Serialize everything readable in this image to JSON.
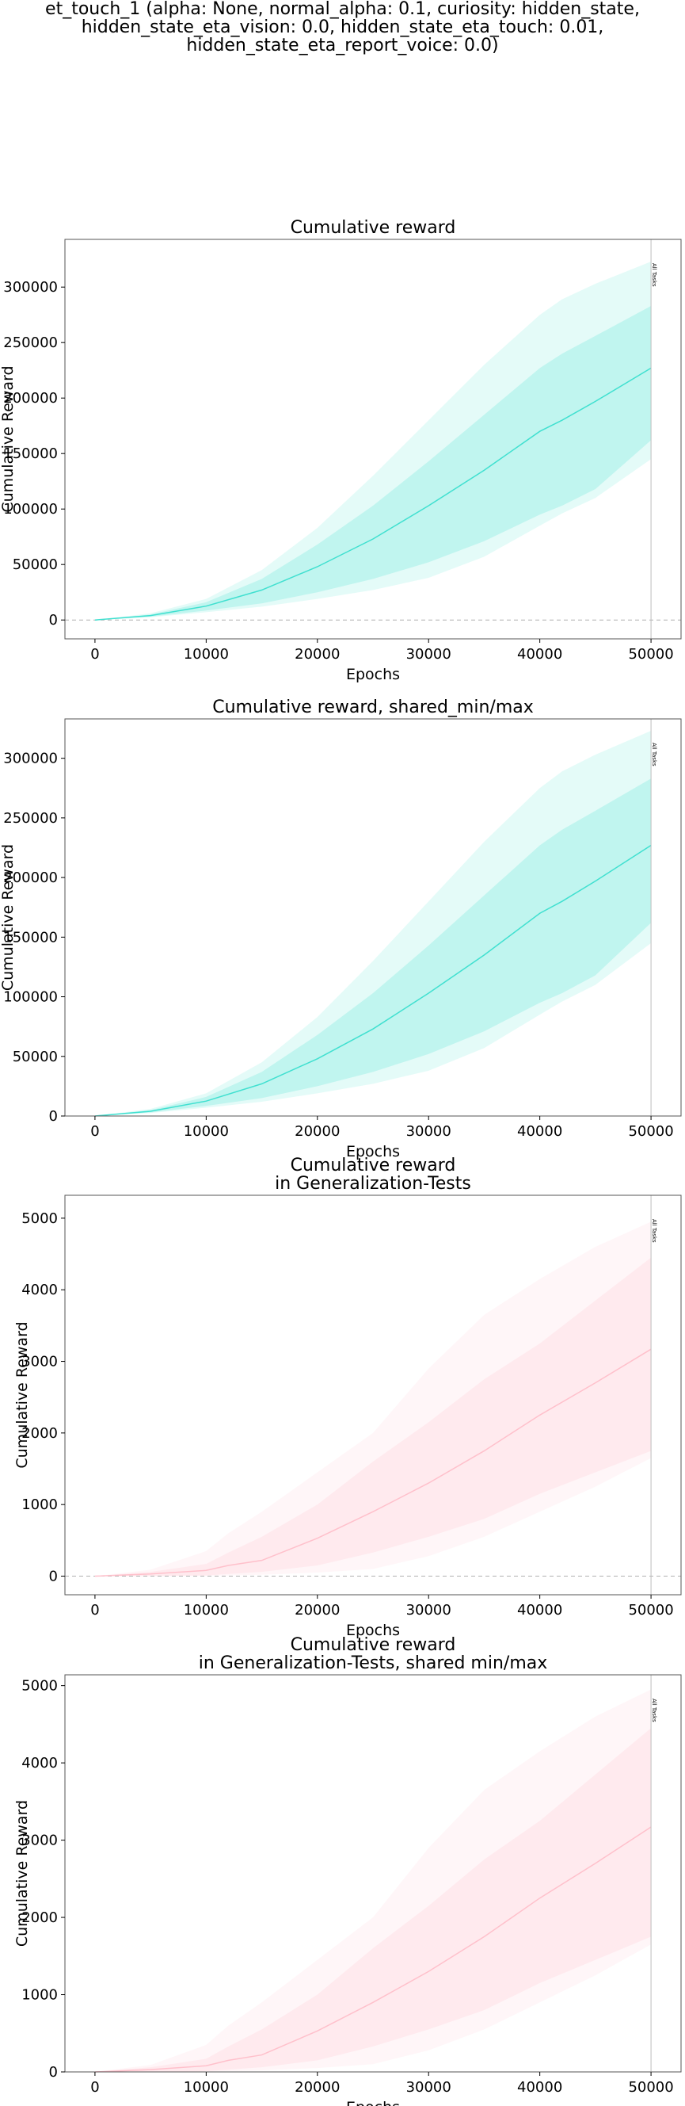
{
  "figure": {
    "suptitle_lines": [
      "et_touch_1 (alpha: None, normal_alpha: 0.1, curiosity: hidden_state,",
      "hidden_state_eta_vision: 0.0, hidden_state_eta_touch: 0.01,",
      "hidden_state_eta_report_voice: 0.0)"
    ]
  },
  "chart_data": [
    {
      "type": "area",
      "title_lines": [
        "Cumulative reward"
      ],
      "xlabel": "Epochs",
      "ylabel": "Cumulative Reward",
      "xlim": [
        -2700,
        52700
      ],
      "ylim": [
        -17000,
        343000
      ],
      "xticks": [
        0,
        10000,
        20000,
        30000,
        40000,
        50000
      ],
      "yticks": [
        0,
        50000,
        100000,
        150000,
        200000,
        250000,
        300000
      ],
      "zero_line": true,
      "marker": {
        "x": 50000,
        "label": "All Tasks"
      },
      "color": "#40e0d0",
      "x": [
        0,
        5000,
        10000,
        15000,
        20000,
        25000,
        30000,
        35000,
        40000,
        42000,
        45000,
        50000
      ],
      "mean": [
        0,
        4000,
        12500,
        27000,
        48000,
        73000,
        103000,
        135000,
        170000,
        180000,
        197000,
        227000
      ],
      "inner_low": [
        0,
        3000,
        8500,
        15000,
        25000,
        37000,
        52000,
        71000,
        95000,
        103000,
        118000,
        162000
      ],
      "inner_high": [
        0,
        5000,
        16000,
        37000,
        68000,
        103000,
        143000,
        185000,
        227000,
        240000,
        256000,
        283000
      ],
      "outer_low": [
        0,
        2500,
        7000,
        12000,
        19000,
        27000,
        38000,
        57000,
        85000,
        96000,
        110000,
        145000
      ],
      "outer_high": [
        0,
        6000,
        19000,
        45000,
        83000,
        130000,
        180000,
        230000,
        275000,
        289000,
        303000,
        323000
      ]
    },
    {
      "type": "area",
      "title_lines": [
        "Cumulative reward, shared_min/max"
      ],
      "xlabel": "Epochs",
      "ylabel": "Cumulative Reward",
      "xlim": [
        -2700,
        52700
      ],
      "ylim": [
        0,
        333000
      ],
      "xticks": [
        0,
        10000,
        20000,
        30000,
        40000,
        50000
      ],
      "yticks": [
        0,
        50000,
        100000,
        150000,
        200000,
        250000,
        300000
      ],
      "zero_line": false,
      "marker": {
        "x": 50000,
        "label": "All Tasks"
      },
      "color": "#40e0d0",
      "x": [
        0,
        5000,
        10000,
        15000,
        20000,
        25000,
        30000,
        35000,
        40000,
        42000,
        45000,
        50000
      ],
      "mean": [
        0,
        4000,
        12500,
        27000,
        48000,
        73000,
        103000,
        135000,
        170000,
        180000,
        197000,
        227000
      ],
      "inner_low": [
        0,
        3000,
        8500,
        15000,
        25000,
        37000,
        52000,
        71000,
        95000,
        103000,
        118000,
        162000
      ],
      "inner_high": [
        0,
        5000,
        16000,
        37000,
        68000,
        103000,
        143000,
        185000,
        227000,
        240000,
        256000,
        283000
      ],
      "outer_low": [
        0,
        2500,
        7000,
        12000,
        19000,
        27000,
        38000,
        57000,
        85000,
        96000,
        110000,
        145000
      ],
      "outer_high": [
        0,
        6000,
        19000,
        45000,
        83000,
        130000,
        180000,
        230000,
        275000,
        289000,
        303000,
        323000
      ]
    },
    {
      "type": "area",
      "title_lines": [
        "Cumulative reward",
        "in Generalization-Tests"
      ],
      "xlabel": "Epochs",
      "ylabel": "Cumulative Reward",
      "xlim": [
        -2700,
        52700
      ],
      "ylim": [
        -260,
        5320
      ],
      "xticks": [
        0,
        10000,
        20000,
        30000,
        40000,
        50000
      ],
      "yticks": [
        0,
        1000,
        2000,
        3000,
        4000,
        5000
      ],
      "zero_line": true,
      "marker": {
        "x": 50000,
        "label": "All Tasks"
      },
      "color": "#ffc0cb",
      "x": [
        0,
        5000,
        10000,
        12000,
        15000,
        20000,
        25000,
        30000,
        35000,
        40000,
        45000,
        50000
      ],
      "mean": [
        0,
        30,
        80,
        150,
        220,
        530,
        900,
        1300,
        1750,
        2250,
        2700,
        3170
      ],
      "inner_low": [
        0,
        0,
        10,
        30,
        60,
        150,
        330,
        550,
        800,
        1150,
        1450,
        1750
      ],
      "inner_high": [
        0,
        60,
        170,
        330,
        550,
        1000,
        1600,
        2150,
        2750,
        3250,
        3850,
        4450
      ],
      "outer_low": [
        0,
        0,
        5,
        10,
        20,
        50,
        100,
        280,
        550,
        900,
        1250,
        1650
      ],
      "outer_high": [
        0,
        90,
        350,
        600,
        900,
        1450,
        2000,
        2900,
        3650,
        4150,
        4600,
        4950
      ]
    },
    {
      "type": "area",
      "title_lines": [
        "Cumulative reward",
        "in Generalization-Tests, shared min/max"
      ],
      "xlabel": "Epochs",
      "ylabel": "Cumulative Reward",
      "xlim": [
        -2700,
        52700
      ],
      "ylim": [
        0,
        5140
      ],
      "xticks": [
        0,
        10000,
        20000,
        30000,
        40000,
        50000
      ],
      "yticks": [
        0,
        1000,
        2000,
        3000,
        4000,
        5000
      ],
      "zero_line": false,
      "marker": {
        "x": 50000,
        "label": "All Tasks"
      },
      "color": "#ffc0cb",
      "x": [
        0,
        5000,
        10000,
        12000,
        15000,
        20000,
        25000,
        30000,
        35000,
        40000,
        45000,
        50000
      ],
      "mean": [
        0,
        30,
        80,
        150,
        220,
        530,
        900,
        1300,
        1750,
        2250,
        2700,
        3170
      ],
      "inner_low": [
        0,
        0,
        10,
        30,
        60,
        150,
        330,
        550,
        800,
        1150,
        1450,
        1750
      ],
      "inner_high": [
        0,
        60,
        170,
        330,
        550,
        1000,
        1600,
        2150,
        2750,
        3250,
        3850,
        4450
      ],
      "outer_low": [
        0,
        0,
        5,
        10,
        20,
        50,
        100,
        280,
        550,
        900,
        1250,
        1650
      ],
      "outer_high": [
        0,
        90,
        350,
        600,
        900,
        1450,
        2000,
        2900,
        3650,
        4150,
        4600,
        4950
      ]
    }
  ]
}
